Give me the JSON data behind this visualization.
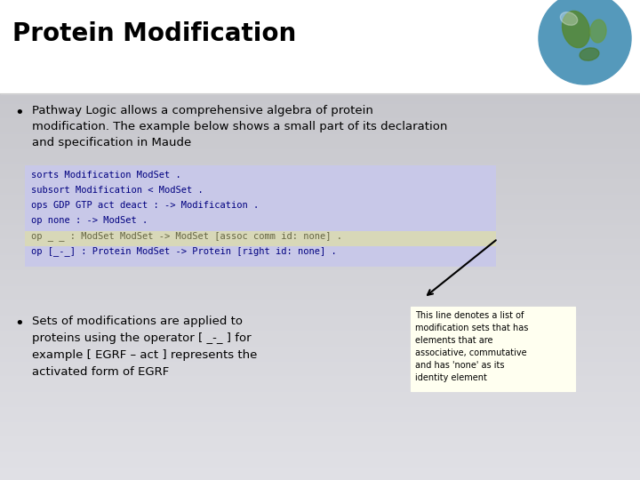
{
  "title": "Protein Modification",
  "title_fontsize": 20,
  "title_fontweight": "bold",
  "title_color": "#000000",
  "bullet1_text": [
    "Pathway Logic allows a comprehensive algebra of protein",
    "modification. The example below shows a small part of its declaration",
    "and specification in Maude"
  ],
  "bullet2_text": [
    "Sets of modifications are applied to",
    "proteins using the operator [ _-_ ] for",
    "example [ EGRF – act ] represents the",
    "activated form of EGRF"
  ],
  "code_lines": [
    "sorts Modification ModSet .",
    "subsort Modification < ModSet .",
    "ops GDP GTP act deact : -> Modification .",
    "op none : -> ModSet .",
    "op _ _ : ModSet ModSet -> ModSet [assoc comm id: none] .",
    "op [_-_] : Protein ModSet -> Protein [right id: none] ."
  ],
  "code_bg_color": "#c8c8e8",
  "code_highlight_color": "#d8d8b8",
  "code_highlight_line": 4,
  "code_font_color": "#000080",
  "code_highlight_font_color": "#666644",
  "annotation_text": [
    "This line denotes a list of",
    "modification sets that has",
    "elements that are",
    "associative, commutative",
    "and has 'none' as its",
    "identity element"
  ],
  "annotation_bg": "#fffff0",
  "annotation_border": "#cccc88"
}
